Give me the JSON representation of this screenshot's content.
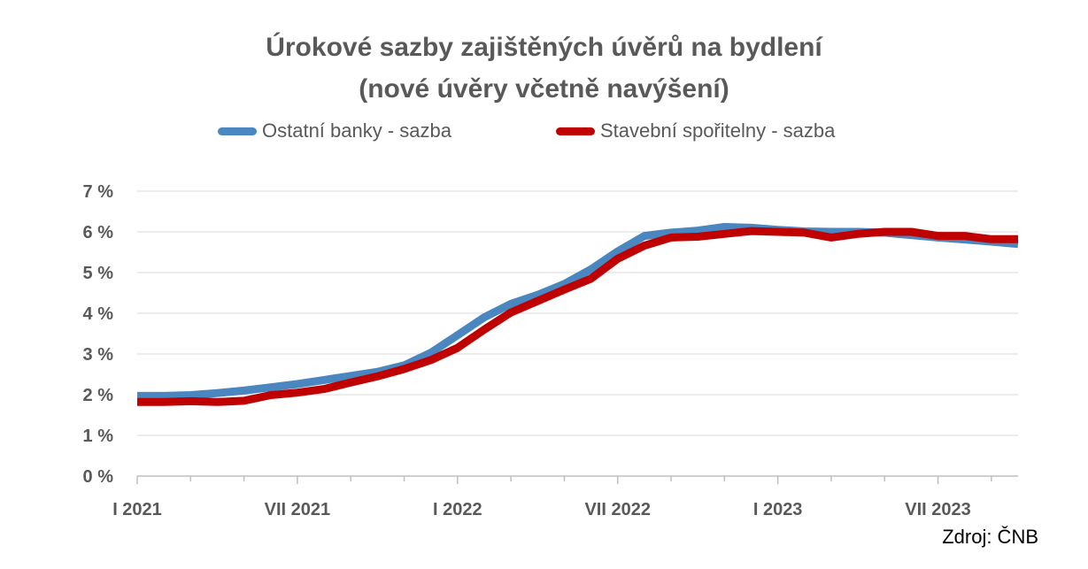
{
  "chart_data": {
    "type": "line",
    "title": [
      "Úrokové sazby zajištěných úvěrů na bydlení",
      "(nové úvěry včetně navýšení)"
    ],
    "xlabel": "",
    "ylabel": "",
    "x": [
      "I 2021",
      "II 2021",
      "III 2021",
      "IV 2021",
      "V 2021",
      "VI 2021",
      "VII 2021",
      "VIII 2021",
      "IX 2021",
      "X 2021",
      "XI 2021",
      "XII 2021",
      "I 2022",
      "II 2022",
      "III 2022",
      "IV 2022",
      "V 2022",
      "VI 2022",
      "VII 2022",
      "VIII 2022",
      "IX 2022",
      "X 2022",
      "XI 2022",
      "XII 2022",
      "I 2023",
      "II 2023",
      "III 2023",
      "IV 2023",
      "V 2023",
      "VI 2023",
      "VII 2023",
      "VIII 2023",
      "IX 2023",
      "X 2023"
    ],
    "x_tick_labels": [
      "I 2021",
      "VII 2021",
      "I 2022",
      "VII 2022",
      "I 2023",
      "VII 2023"
    ],
    "y_tick_labels": [
      "0 %",
      "1 %",
      "2 %",
      "3 %",
      "4 %",
      "5 %",
      "6 %",
      "7 %"
    ],
    "ylim": [
      0,
      7
    ],
    "grid": true,
    "legend_position": "top",
    "series": [
      {
        "name": "Ostatní banky - sazba",
        "color": "#4a86c0",
        "values": [
          1.97,
          1.97,
          1.99,
          2.04,
          2.1,
          2.18,
          2.26,
          2.36,
          2.46,
          2.56,
          2.72,
          3.03,
          3.46,
          3.9,
          4.23,
          4.45,
          4.72,
          5.08,
          5.52,
          5.9,
          5.98,
          6.03,
          6.12,
          6.1,
          6.05,
          6.01,
          6.0,
          6.0,
          5.98,
          5.92,
          5.86,
          5.81,
          5.76,
          5.7
        ]
      },
      {
        "name": "Stavební spořitelny - sazba",
        "color": "#c00000",
        "values": [
          1.82,
          1.82,
          1.84,
          1.82,
          1.85,
          1.99,
          2.05,
          2.14,
          2.3,
          2.45,
          2.63,
          2.85,
          3.15,
          3.6,
          4.02,
          4.3,
          4.58,
          4.85,
          5.34,
          5.66,
          5.86,
          5.88,
          5.95,
          6.02,
          6.0,
          5.98,
          5.86,
          5.95,
          6.0,
          6.0,
          5.9,
          5.9,
          5.82,
          5.82
        ]
      }
    ]
  },
  "source": "Zdroj: ČNB"
}
